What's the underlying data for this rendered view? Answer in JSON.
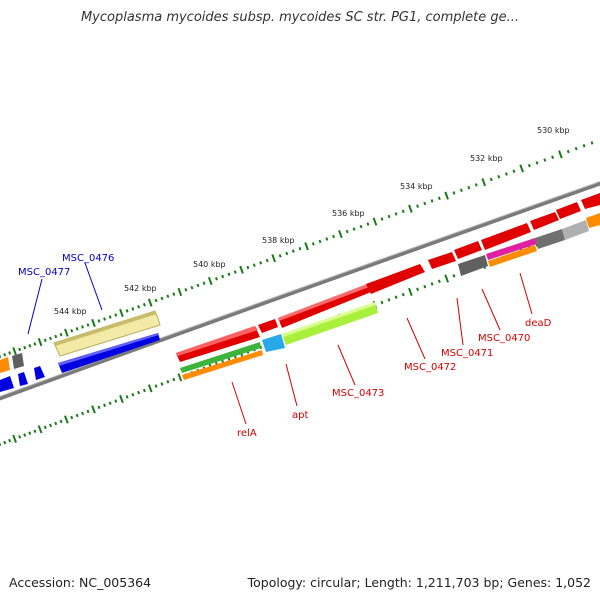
{
  "title": "Mycoplasma mycoides subsp. mycoides SC str. PG1, complete ge...",
  "footer": {
    "accession": "Accession: NC_005364",
    "summary": "Topology: circular; Length: 1,211,703 bp; Genes: 1,052"
  },
  "colors": {
    "backbone": "#808080",
    "tick": "#1a7a1a",
    "red_gene": "#e00000",
    "blue_gene": "#0000e0",
    "red_label": "#d40000",
    "blue_label": "#0000cc"
  },
  "scale": {
    "unit": "kbp",
    "ticks": [
      {
        "label": "530 kbp"
      },
      {
        "label": "532 kbp"
      },
      {
        "label": "534 kbp"
      },
      {
        "label": "536 kbp"
      },
      {
        "label": "538 kbp"
      },
      {
        "label": "540 kbp"
      },
      {
        "label": "542 kbp"
      },
      {
        "label": "544 kbp"
      }
    ]
  },
  "gene_labels": [
    {
      "text": "deaD",
      "color": "red"
    },
    {
      "text": "MSC_0470",
      "color": "red"
    },
    {
      "text": "MSC_0471",
      "color": "red"
    },
    {
      "text": "MSC_0472",
      "color": "red"
    },
    {
      "text": "MSC_0473",
      "color": "red"
    },
    {
      "text": "apt",
      "color": "red"
    },
    {
      "text": "relA",
      "color": "red"
    },
    {
      "text": "MSC_0476",
      "color": "blue"
    },
    {
      "text": "MSC_0477",
      "color": "blue"
    }
  ]
}
